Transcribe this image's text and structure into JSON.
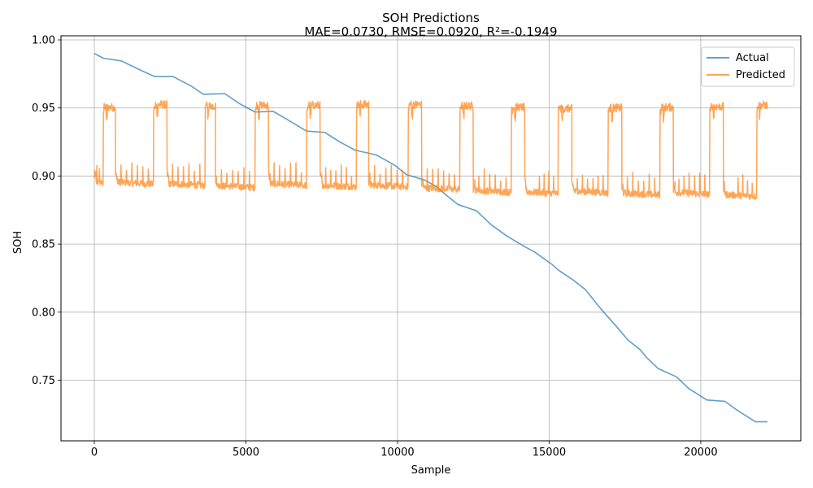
{
  "chart_data": {
    "type": "line",
    "title": "SOH Predictions",
    "subtitle": "MAE=0.0730, RMSE=0.0920, R²=-0.1949",
    "xlabel": "Sample",
    "ylabel": "SOH",
    "xlim": [
      -1100,
      23300
    ],
    "ylim": [
      0.7055,
      1.003
    ],
    "xticks": [
      0,
      5000,
      10000,
      15000,
      20000
    ],
    "xtick_labels": [
      "0",
      "5000",
      "10000",
      "15000",
      "20000"
    ],
    "yticks": [
      0.75,
      0.8,
      0.85,
      0.9,
      0.95,
      1.0
    ],
    "ytick_labels": [
      "0.75",
      "0.80",
      "0.85",
      "0.90",
      "0.95",
      "1.00"
    ],
    "grid": true,
    "legend_position": "top-right",
    "series": [
      {
        "name": "Actual",
        "color": "#1f77b4",
        "x": [
          0,
          300,
          900,
          1500,
          2000,
          2600,
          3200,
          3600,
          4300,
          4800,
          5300,
          5900,
          6400,
          7000,
          7600,
          8100,
          8600,
          9300,
          9900,
          10300,
          10900,
          11300,
          11600,
          12000,
          12600,
          13100,
          13600,
          14200,
          14500,
          15100,
          15300,
          15800,
          16200,
          16500,
          16800,
          17200,
          17600,
          18000,
          18200,
          18600,
          19200,
          19600,
          20200,
          20800,
          21200,
          21800,
          22200
        ],
        "y": [
          0.99,
          0.9865,
          0.9845,
          0.978,
          0.973,
          0.973,
          0.966,
          0.96,
          0.9605,
          0.953,
          0.947,
          0.9475,
          0.941,
          0.933,
          0.932,
          0.925,
          0.919,
          0.9155,
          0.908,
          0.901,
          0.897,
          0.892,
          0.886,
          0.879,
          0.8745,
          0.864,
          0.856,
          0.848,
          0.8445,
          0.835,
          0.831,
          0.8235,
          0.8165,
          0.808,
          0.8,
          0.79,
          0.7795,
          0.7725,
          0.767,
          0.7585,
          0.7525,
          0.744,
          0.7355,
          0.7345,
          0.728,
          0.7195,
          0.7195
        ]
      },
      {
        "name": "Predicted",
        "color": "#ff7f0e",
        "x_start": 0,
        "x_end": 22200,
        "cycles": [
          {
            "start": 0,
            "high_start": 290,
            "end": 700,
            "low": 0.8955,
            "high": 0.9505
          },
          {
            "start": 700,
            "high_start": 1950,
            "end": 2400,
            "low": 0.8955,
            "high": 0.9525
          },
          {
            "start": 2400,
            "high_start": 3650,
            "end": 4000,
            "low": 0.8945,
            "high": 0.9515
          },
          {
            "start": 4000,
            "high_start": 5300,
            "end": 5750,
            "low": 0.893,
            "high": 0.952
          },
          {
            "start": 5750,
            "high_start": 7000,
            "end": 7450,
            "low": 0.8945,
            "high": 0.952
          },
          {
            "start": 7450,
            "high_start": 8650,
            "end": 9050,
            "low": 0.8935,
            "high": 0.9525
          },
          {
            "start": 9050,
            "high_start": 10350,
            "end": 10800,
            "low": 0.8935,
            "high": 0.9525
          },
          {
            "start": 10800,
            "high_start": 12050,
            "end": 12500,
            "low": 0.8915,
            "high": 0.9515
          },
          {
            "start": 12500,
            "high_start": 13750,
            "end": 14200,
            "low": 0.8895,
            "high": 0.9505
          },
          {
            "start": 14200,
            "high_start": 15300,
            "end": 15750,
            "low": 0.8885,
            "high": 0.9495
          },
          {
            "start": 15750,
            "high_start": 16950,
            "end": 17400,
            "low": 0.889,
            "high": 0.95
          },
          {
            "start": 17400,
            "high_start": 18650,
            "end": 19100,
            "low": 0.8875,
            "high": 0.9505
          },
          {
            "start": 19100,
            "high_start": 20300,
            "end": 20750,
            "low": 0.888,
            "high": 0.951
          },
          {
            "start": 20750,
            "high_start": 21850,
            "end": 22200,
            "low": 0.8865,
            "high": 0.952
          }
        ]
      }
    ]
  }
}
